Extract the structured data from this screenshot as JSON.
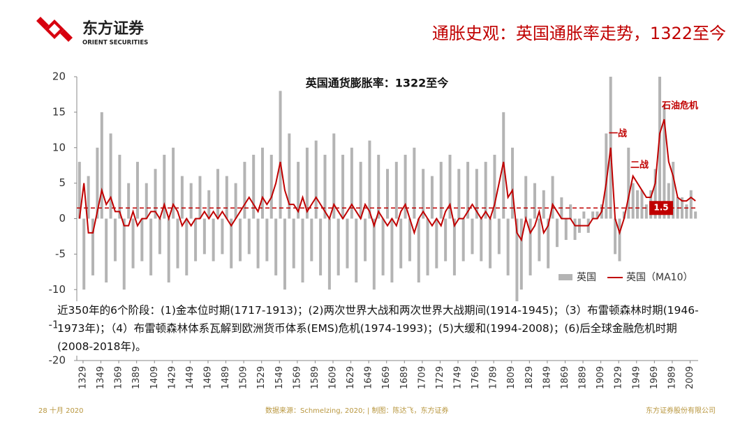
{
  "header": {
    "logo_cn": "东方证券",
    "logo_en": "ORIENT SECURITIES",
    "title": "通胀史观：英国通胀率走势，1322至今"
  },
  "footer": {
    "date": "28 十月 2020",
    "source": "数据来源：Schmelzing, 2020; | 制图：陈达飞，东方证券",
    "company": "东方证券股份有限公司"
  },
  "chart_data": {
    "type": "bar_line",
    "title": "英国通货膨胀率：1322至今",
    "x": [
      1325,
      1330,
      1335,
      1340,
      1345,
      1350,
      1355,
      1360,
      1365,
      1370,
      1375,
      1380,
      1385,
      1390,
      1395,
      1400,
      1405,
      1410,
      1415,
      1420,
      1425,
      1430,
      1435,
      1440,
      1445,
      1450,
      1455,
      1460,
      1465,
      1470,
      1475,
      1480,
      1485,
      1490,
      1495,
      1500,
      1505,
      1510,
      1515,
      1520,
      1525,
      1530,
      1535,
      1540,
      1545,
      1550,
      1555,
      1560,
      1565,
      1570,
      1575,
      1580,
      1585,
      1590,
      1595,
      1600,
      1605,
      1610,
      1615,
      1620,
      1625,
      1630,
      1635,
      1640,
      1645,
      1650,
      1655,
      1660,
      1665,
      1670,
      1675,
      1680,
      1685,
      1690,
      1695,
      1700,
      1705,
      1710,
      1715,
      1720,
      1725,
      1730,
      1735,
      1740,
      1745,
      1750,
      1755,
      1760,
      1765,
      1770,
      1775,
      1780,
      1785,
      1790,
      1795,
      1800,
      1805,
      1810,
      1815,
      1820,
      1825,
      1830,
      1835,
      1840,
      1845,
      1850,
      1855,
      1860,
      1865,
      1870,
      1875,
      1880,
      1885,
      1890,
      1895,
      1900,
      1905,
      1910,
      1915,
      1920,
      1925,
      1930,
      1935,
      1940,
      1945,
      1950,
      1955,
      1960,
      1965,
      1970,
      1975,
      1980,
      1985,
      1990,
      1995,
      2000,
      2005,
      2010,
      2015
    ],
    "series": [
      {
        "name": "英国",
        "color": "#b4b4b4",
        "kind": "bar",
        "values": [
          8,
          -10,
          6,
          -8,
          10,
          15,
          -9,
          12,
          -6,
          9,
          -10,
          5,
          -7,
          8,
          -6,
          5,
          -8,
          7,
          -5,
          9,
          -9,
          10,
          -7,
          6,
          -8,
          5,
          -6,
          6,
          -5,
          4,
          -6,
          7,
          -5,
          6,
          -7,
          5,
          -6,
          8,
          -5,
          9,
          -7,
          10,
          -6,
          9,
          -8,
          18,
          -10,
          12,
          -7,
          8,
          -9,
          10,
          -6,
          11,
          -8,
          9,
          -10,
          12,
          -8,
          9,
          -7,
          10,
          -9,
          8,
          -6,
          11,
          -10,
          9,
          -8,
          7,
          -9,
          8,
          -7,
          9,
          -6,
          10,
          -9,
          7,
          -8,
          6,
          -7,
          8,
          -6,
          9,
          -8,
          7,
          -6,
          8,
          -5,
          7,
          -6,
          8,
          -7,
          9,
          -5,
          15,
          -8,
          10,
          -12,
          -10,
          6,
          -8,
          5,
          -6,
          4,
          -7,
          6,
          -4,
          3,
          -3,
          2,
          -3,
          -2,
          1,
          -2,
          1,
          1,
          2,
          12,
          20,
          -5,
          -6,
          1,
          10,
          5,
          4,
          4,
          2,
          4,
          7,
          20,
          16,
          5,
          8,
          3,
          3,
          2,
          4,
          1
        ]
      },
      {
        "name": "英国（MA10）",
        "color": "#c00000",
        "kind": "line",
        "values": [
          0,
          5,
          -2,
          -2,
          1,
          4,
          2,
          3,
          1,
          1,
          -1,
          -1,
          1,
          -1,
          0,
          0,
          1,
          1,
          0,
          2,
          0,
          2,
          1,
          -1,
          0,
          -1,
          0,
          0,
          1,
          0,
          1,
          0,
          1,
          0,
          -1,
          0,
          1,
          2,
          3,
          2,
          1,
          3,
          2,
          3,
          5,
          8,
          4,
          2,
          2,
          1,
          3,
          1,
          2,
          3,
          2,
          1,
          0,
          2,
          1,
          0,
          1,
          2,
          1,
          0,
          2,
          1,
          -1,
          1,
          0,
          -1,
          0,
          -1,
          1,
          2,
          0,
          -2,
          0,
          1,
          0,
          -1,
          0,
          -1,
          1,
          2,
          -1,
          0,
          0,
          1,
          2,
          1,
          0,
          1,
          0,
          2,
          5,
          8,
          3,
          4,
          -2,
          -3,
          0,
          -2,
          -1,
          1,
          -2,
          -1,
          2,
          1,
          0,
          0,
          0,
          -1,
          -1,
          -1,
          -1,
          0,
          0,
          1,
          5,
          10,
          0,
          -2,
          0,
          3,
          6,
          5,
          4,
          3,
          3,
          5,
          12,
          14,
          8,
          6,
          3,
          2.5,
          2.5,
          3,
          2.5
        ]
      }
    ],
    "reference_line": 1.5,
    "xlim": [
      1322,
      2018
    ],
    "xticks": [
      1329,
      1349,
      1369,
      1389,
      1409,
      1429,
      1449,
      1469,
      1489,
      1509,
      1529,
      1549,
      1569,
      1589,
      1609,
      1629,
      1649,
      1669,
      1689,
      1709,
      1729,
      1749,
      1769,
      1789,
      1809,
      1829,
      1849,
      1869,
      1889,
      1909,
      1929,
      1949,
      1969,
      1989,
      2009
    ],
    "ylim": [
      -20,
      20
    ],
    "yticks": [
      -20,
      -15,
      -10,
      -5,
      0,
      5,
      10,
      15,
      20
    ],
    "annotations": [
      "一战",
      "二战",
      "石油危机"
    ],
    "text_box": "近350年的6个阶段：(1)金本位时期(1717-1913)；(2)两次世界大战和两次世界大战期间(1914-1945)；（3）布雷顿森林时期(1946-1973年)；（4）布雷顿森林体系瓦解到欧洲货币体系(EMS)危机(1974-1993)；(5)大缓和(1994-2008)；(6)后全球金融危机时期(2008-2018年)。"
  }
}
